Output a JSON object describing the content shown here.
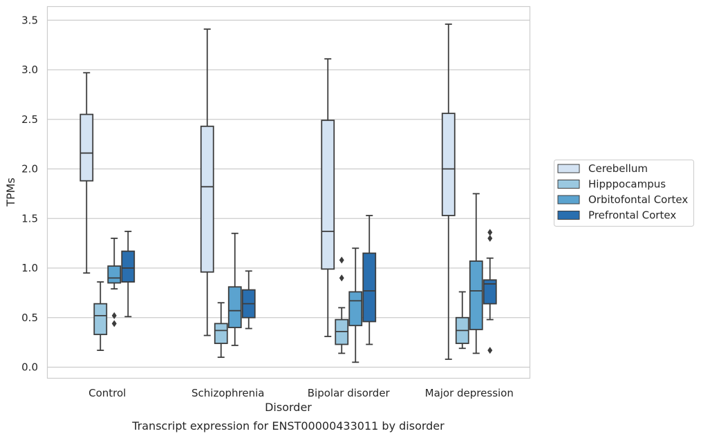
{
  "chart_data": {
    "type": "box",
    "xlabel": "Disorder",
    "ylabel": "TPMs",
    "caption": "Transcript expression for ENST00000433011 by disorder",
    "ylim": [
      -0.1,
      3.65
    ],
    "yticks": [
      "0.0",
      "0.5",
      "1.0",
      "1.5",
      "2.0",
      "2.5",
      "3.0",
      "3.5"
    ],
    "grid": true,
    "legend_position": "right",
    "categories": [
      "Control",
      "Schizophrenia",
      "Bipolar disorder",
      "Major depression"
    ],
    "series": [
      {
        "name": "Cerebellum",
        "color": "#d4e3f3",
        "boxes": [
          {
            "whislo": 0.95,
            "q1": 1.88,
            "med": 2.16,
            "q3": 2.55,
            "whishi": 2.97,
            "fliers": []
          },
          {
            "whislo": 0.32,
            "q1": 0.96,
            "med": 1.82,
            "q3": 2.43,
            "whishi": 3.41,
            "fliers": []
          },
          {
            "whislo": 0.31,
            "q1": 0.99,
            "med": 1.37,
            "q3": 2.49,
            "whishi": 3.11,
            "fliers": []
          },
          {
            "whislo": 0.08,
            "q1": 1.53,
            "med": 2.0,
            "q3": 2.56,
            "whishi": 3.46,
            "fliers": []
          }
        ]
      },
      {
        "name": "Hipppocampus",
        "color": "#9ac8e0",
        "boxes": [
          {
            "whislo": 0.17,
            "q1": 0.33,
            "med": 0.52,
            "q3": 0.64,
            "whishi": 0.86,
            "fliers": []
          },
          {
            "whislo": 0.1,
            "q1": 0.24,
            "med": 0.37,
            "q3": 0.44,
            "whishi": 0.65,
            "fliers": []
          },
          {
            "whislo": 0.14,
            "q1": 0.23,
            "med": 0.36,
            "q3": 0.48,
            "whishi": 0.6,
            "fliers": [
              0.9,
              1.08
            ]
          },
          {
            "whislo": 0.19,
            "q1": 0.24,
            "med": 0.37,
            "q3": 0.5,
            "whishi": 0.76,
            "fliers": []
          }
        ]
      },
      {
        "name": "Orbitofontal Cortex",
        "color": "#5ba3cf",
        "boxes": [
          {
            "whislo": 0.79,
            "q1": 0.85,
            "med": 0.9,
            "q3": 1.02,
            "whishi": 1.3,
            "fliers": [
              0.44,
              0.52
            ]
          },
          {
            "whislo": 0.22,
            "q1": 0.4,
            "med": 0.57,
            "q3": 0.81,
            "whishi": 1.35,
            "fliers": []
          },
          {
            "whislo": 0.05,
            "q1": 0.42,
            "med": 0.67,
            "q3": 0.76,
            "whishi": 1.2,
            "fliers": []
          },
          {
            "whislo": 0.14,
            "q1": 0.38,
            "med": 0.77,
            "q3": 1.07,
            "whishi": 1.75,
            "fliers": []
          }
        ]
      },
      {
        "name": "Prefrontal Cortex",
        "color": "#2a6faf",
        "boxes": [
          {
            "whislo": 0.51,
            "q1": 0.86,
            "med": 1.0,
            "q3": 1.17,
            "whishi": 1.37,
            "fliers": []
          },
          {
            "whislo": 0.39,
            "q1": 0.5,
            "med": 0.64,
            "q3": 0.78,
            "whishi": 0.97,
            "fliers": []
          },
          {
            "whislo": 0.23,
            "q1": 0.46,
            "med": 0.77,
            "q3": 1.15,
            "whishi": 1.53,
            "fliers": []
          },
          {
            "whislo": 0.48,
            "q1": 0.64,
            "med": 0.84,
            "q3": 0.88,
            "whishi": 1.1,
            "fliers": [
              0.17,
              1.3,
              1.36
            ]
          }
        ]
      }
    ]
  }
}
